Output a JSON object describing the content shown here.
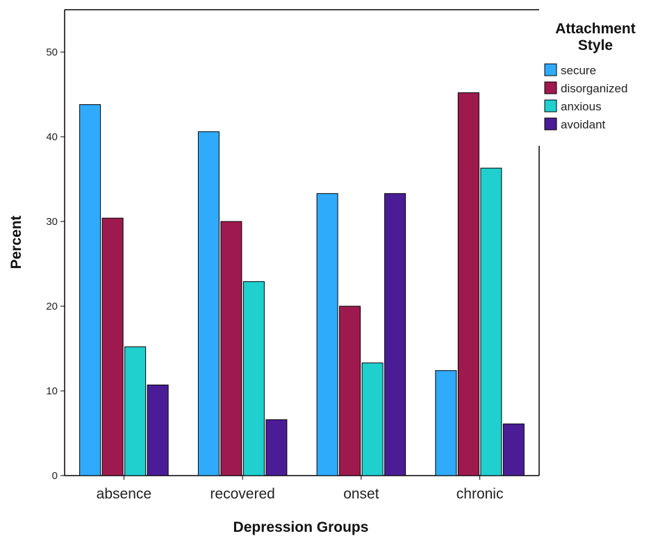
{
  "chart_data": {
    "type": "bar",
    "xlabel": "Depression Groups",
    "ylabel": "Percent",
    "ylim": [
      0,
      55
    ],
    "yticks": [
      "0",
      "10",
      "20",
      "30",
      "40",
      "50"
    ],
    "categories": [
      "absence",
      "recovered",
      "onset",
      "chronic"
    ],
    "legend": {
      "title_line1": "Attachment",
      "title_line2": "Style",
      "placement": "top-right"
    },
    "grid": false,
    "series": [
      {
        "name": "secure",
        "color": "#30AAFB",
        "values": [
          43.8,
          40.6,
          33.3,
          12.4
        ]
      },
      {
        "name": "disorganized",
        "color": "#9E1A4E",
        "values": [
          30.4,
          30.0,
          20.0,
          45.2
        ]
      },
      {
        "name": "anxious",
        "color": "#1FD0CF",
        "values": [
          15.2,
          22.9,
          13.3,
          36.3
        ]
      },
      {
        "name": "avoidant",
        "color": "#4A1D96",
        "values": [
          10.7,
          6.6,
          33.3,
          6.1
        ]
      }
    ]
  }
}
